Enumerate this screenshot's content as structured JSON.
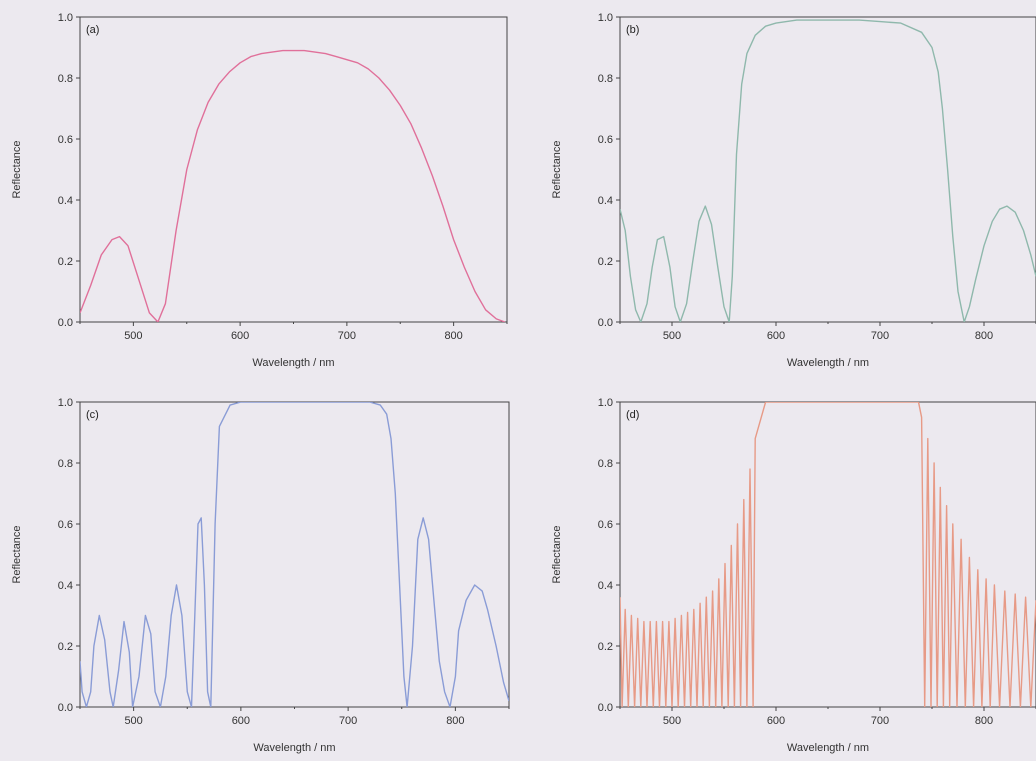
{
  "chart_data": [
    {
      "type": "line",
      "panel_label": "(a)",
      "xlabel": "Wavelength / nm",
      "ylabel": "Reflectance",
      "xlim": [
        450,
        850
      ],
      "ylim": [
        0,
        1.0
      ],
      "xticks": [
        500,
        600,
        700,
        800
      ],
      "yticks": [
        0.0,
        0.2,
        0.4,
        0.6,
        0.8,
        1.0
      ],
      "color": "#e0709a",
      "series": [
        {
          "x": [
            450,
            460,
            470,
            480,
            487,
            495,
            505,
            515,
            523,
            530,
            540,
            550,
            560,
            570,
            580,
            590,
            600,
            610,
            620,
            630,
            640,
            650,
            660,
            670,
            680,
            690,
            700,
            710,
            720,
            730,
            740,
            750,
            760,
            770,
            780,
            790,
            800,
            810,
            820,
            830,
            840,
            848
          ],
          "y": [
            0.03,
            0.12,
            0.22,
            0.27,
            0.28,
            0.25,
            0.14,
            0.03,
            0.0,
            0.06,
            0.3,
            0.5,
            0.63,
            0.72,
            0.78,
            0.82,
            0.85,
            0.87,
            0.88,
            0.885,
            0.89,
            0.89,
            0.89,
            0.885,
            0.88,
            0.87,
            0.86,
            0.85,
            0.83,
            0.8,
            0.76,
            0.71,
            0.65,
            0.57,
            0.48,
            0.38,
            0.27,
            0.18,
            0.1,
            0.04,
            0.01,
            0.0
          ]
        }
      ]
    },
    {
      "type": "line",
      "panel_label": "(b)",
      "xlabel": "Wavelength / nm",
      "ylabel": "Reflectance",
      "xlim": [
        450,
        850
      ],
      "ylim": [
        0,
        1.0
      ],
      "xticks": [
        500,
        600,
        700,
        800
      ],
      "yticks": [
        0.0,
        0.2,
        0.4,
        0.6,
        0.8,
        1.0
      ],
      "color": "#8fb8ac",
      "series": [
        {
          "x": [
            450,
            455,
            460,
            465,
            470,
            476,
            481,
            486,
            492,
            498,
            503,
            508,
            514,
            520,
            526,
            532,
            538,
            544,
            550,
            555,
            558,
            562,
            567,
            572,
            580,
            590,
            600,
            610,
            620,
            640,
            660,
            680,
            700,
            720,
            740,
            750,
            756,
            760,
            765,
            770,
            775,
            781,
            786,
            792,
            800,
            808,
            815,
            822,
            830,
            838,
            845,
            850
          ],
          "y": [
            0.37,
            0.3,
            0.15,
            0.04,
            0.0,
            0.06,
            0.18,
            0.27,
            0.28,
            0.18,
            0.05,
            0.0,
            0.06,
            0.2,
            0.33,
            0.38,
            0.32,
            0.18,
            0.05,
            0.0,
            0.15,
            0.55,
            0.78,
            0.88,
            0.94,
            0.97,
            0.98,
            0.985,
            0.99,
            0.99,
            0.99,
            0.99,
            0.985,
            0.98,
            0.95,
            0.9,
            0.82,
            0.7,
            0.5,
            0.28,
            0.1,
            0.0,
            0.05,
            0.14,
            0.25,
            0.33,
            0.37,
            0.38,
            0.36,
            0.3,
            0.22,
            0.15
          ]
        }
      ]
    },
    {
      "type": "line",
      "panel_label": "(c)",
      "xlabel": "Wavelength / nm",
      "ylabel": "Reflectance",
      "xlim": [
        450,
        850
      ],
      "ylim": [
        0,
        1.0
      ],
      "xticks": [
        500,
        600,
        700,
        800
      ],
      "yticks": [
        0.0,
        0.2,
        0.4,
        0.6,
        0.8,
        1.0
      ],
      "color": "#8a9cd6",
      "series": [
        {
          "x": [
            450,
            452,
            456,
            460,
            463,
            468,
            473,
            478,
            481,
            486,
            491,
            496,
            499,
            505,
            511,
            516,
            520,
            525,
            530,
            535,
            540,
            545,
            550,
            554,
            557,
            560,
            563,
            566,
            569,
            572,
            576,
            580,
            590,
            600,
            620,
            650,
            680,
            700,
            720,
            730,
            736,
            740,
            744,
            748,
            752,
            755,
            760,
            765,
            770,
            775,
            780,
            785,
            790,
            795,
            800,
            803,
            810,
            818,
            825,
            830,
            838,
            845,
            850
          ],
          "y": [
            0.15,
            0.05,
            0.0,
            0.05,
            0.2,
            0.3,
            0.22,
            0.05,
            0.0,
            0.12,
            0.28,
            0.18,
            0.0,
            0.1,
            0.3,
            0.24,
            0.05,
            0.0,
            0.1,
            0.3,
            0.4,
            0.3,
            0.05,
            0.0,
            0.3,
            0.6,
            0.62,
            0.4,
            0.05,
            0.0,
            0.6,
            0.92,
            0.99,
            1.0,
            1.0,
            1.0,
            1.0,
            1.0,
            1.0,
            0.99,
            0.96,
            0.88,
            0.7,
            0.4,
            0.1,
            0.0,
            0.2,
            0.55,
            0.62,
            0.55,
            0.35,
            0.15,
            0.05,
            0.0,
            0.1,
            0.25,
            0.35,
            0.4,
            0.38,
            0.32,
            0.2,
            0.08,
            0.02
          ]
        }
      ]
    },
    {
      "type": "line",
      "panel_label": "(d)",
      "xlabel": "Wavelength / nm",
      "ylabel": "Reflectance",
      "xlim": [
        450,
        850
      ],
      "ylim": [
        0,
        1.0
      ],
      "xticks": [
        500,
        600,
        700,
        800
      ],
      "yticks": [
        0.0,
        0.2,
        0.4,
        0.6,
        0.8,
        1.0
      ],
      "color": "#e79a86",
      "series": [
        {
          "x": [
            450,
            452,
            455,
            458,
            461,
            464,
            467,
            470,
            473,
            476,
            479,
            482,
            485,
            488,
            491,
            494,
            497,
            500,
            503,
            506,
            509,
            512,
            515,
            518,
            521,
            524,
            527,
            530,
            533,
            536,
            539,
            542,
            545,
            548,
            551,
            554,
            557,
            560,
            563,
            566,
            569,
            572,
            575,
            578,
            580,
            590,
            600,
            650,
            700,
            730,
            737,
            740,
            743,
            746,
            749,
            752,
            755,
            758,
            761,
            764,
            767,
            770,
            774,
            778,
            782,
            786,
            790,
            794,
            798,
            802,
            806,
            810,
            815,
            820,
            825,
            830,
            835,
            840,
            845,
            850
          ],
          "y": [
            0.36,
            0.0,
            0.32,
            0.0,
            0.3,
            0.0,
            0.29,
            0.0,
            0.28,
            0.0,
            0.28,
            0.0,
            0.28,
            0.0,
            0.28,
            0.0,
            0.28,
            0.0,
            0.29,
            0.0,
            0.3,
            0.0,
            0.31,
            0.0,
            0.32,
            0.0,
            0.34,
            0.0,
            0.36,
            0.0,
            0.38,
            0.0,
            0.42,
            0.0,
            0.47,
            0.0,
            0.53,
            0.0,
            0.6,
            0.0,
            0.68,
            0.0,
            0.78,
            0.0,
            0.88,
            1.0,
            1.0,
            1.0,
            1.0,
            1.0,
            1.0,
            0.95,
            0.0,
            0.88,
            0.0,
            0.8,
            0.0,
            0.72,
            0.0,
            0.66,
            0.0,
            0.6,
            0.0,
            0.55,
            0.0,
            0.49,
            0.0,
            0.45,
            0.0,
            0.42,
            0.0,
            0.4,
            0.0,
            0.38,
            0.0,
            0.37,
            0.0,
            0.36,
            0.0,
            0.35
          ]
        }
      ]
    }
  ]
}
